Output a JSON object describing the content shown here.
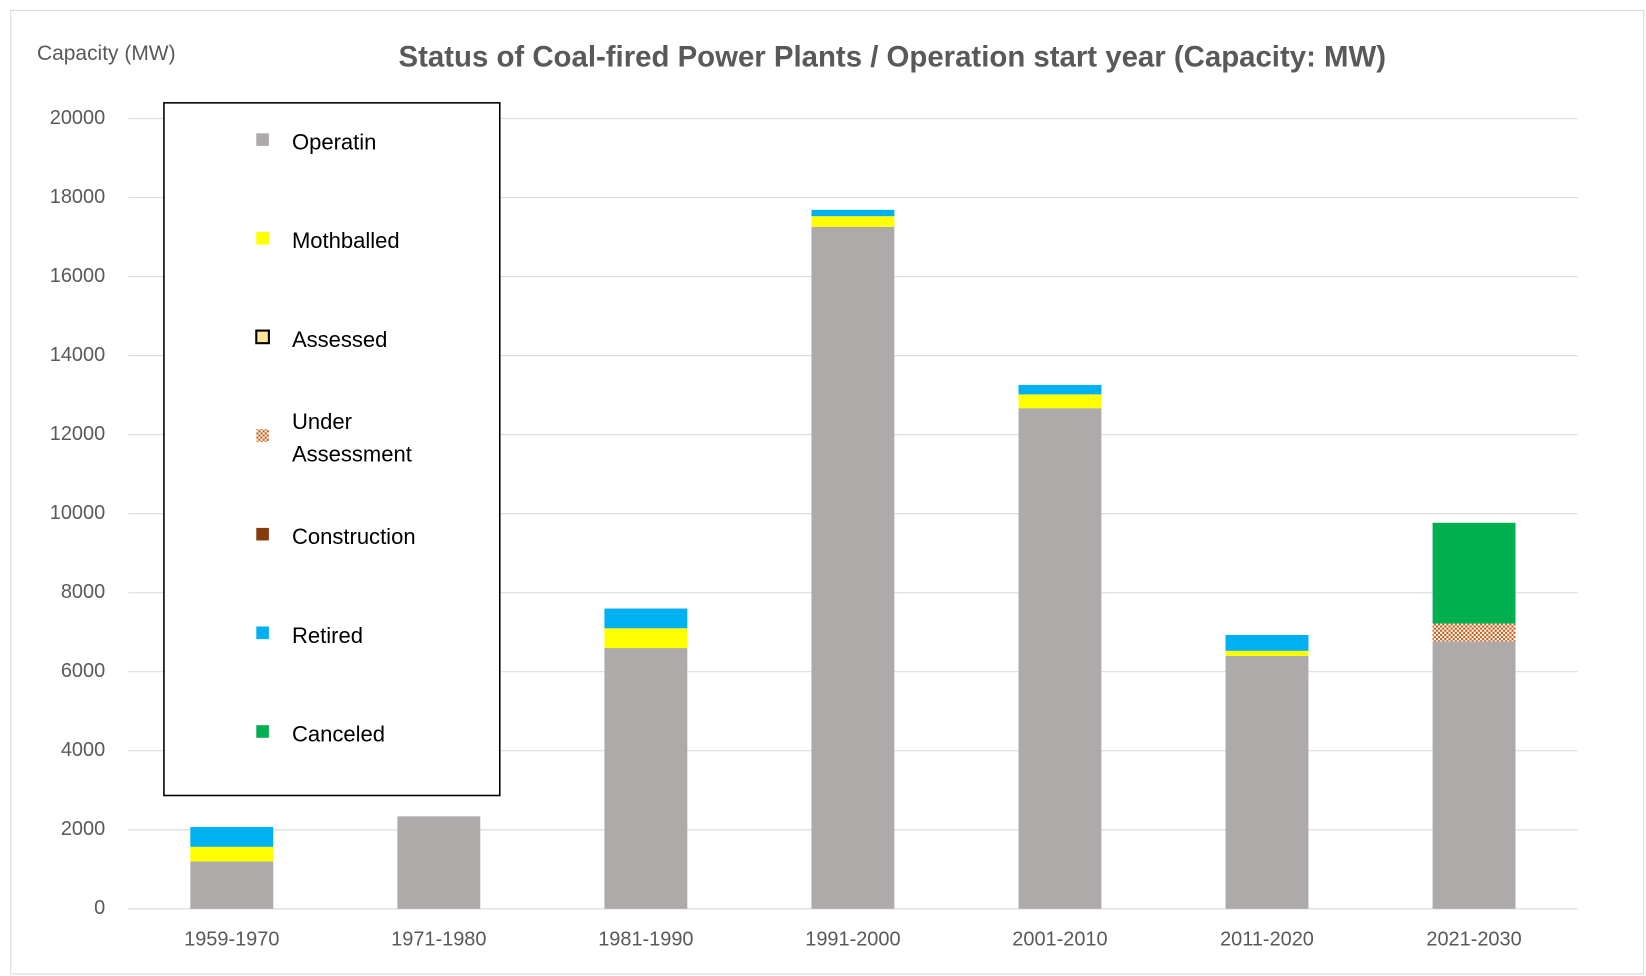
{
  "chart_data": {
    "type": "stacked_bar",
    "title": "Status of Coal-fired Power Plants / Operation start year (Capacity: MW)",
    "y_label": "Capacity (MW)",
    "categories": [
      "1959-1970",
      "1971-1980",
      "1981-1990",
      "1991-2000",
      "2001-2010",
      "2011-2020",
      "2021-2030"
    ],
    "series": [
      {
        "name": "Operatin",
        "color": "#aeaaaa",
        "values": [
          1200,
          2340,
          6600,
          17260,
          12670,
          6400,
          6770
        ]
      },
      {
        "name": "Mothballed",
        "color": "#ffff00",
        "values": [
          370,
          0,
          500,
          270,
          350,
          130,
          0
        ]
      },
      {
        "name": "Assessed",
        "color": "#ffe699",
        "values": [
          0,
          0,
          0,
          0,
          0,
          0,
          0
        ]
      },
      {
        "name": "Under Assessment",
        "color": "#c55a11",
        "values": [
          0,
          0,
          0,
          0,
          0,
          0,
          450
        ]
      },
      {
        "name": "Construction",
        "color": "#843c0c",
        "values": [
          0,
          0,
          0,
          0,
          0,
          0,
          0
        ]
      },
      {
        "name": "Retired",
        "color": "#00b0f0",
        "values": [
          500,
          0,
          500,
          160,
          240,
          400,
          0
        ]
      },
      {
        "name": "Canceled",
        "color": "#00b050",
        "values": [
          0,
          0,
          0,
          0,
          0,
          0,
          2550
        ]
      }
    ],
    "ylim": [
      0,
      20000
    ],
    "yticks": [
      0,
      2000,
      4000,
      6000,
      8000,
      10000,
      12000,
      14000,
      16000,
      18000,
      20000
    ],
    "grid": true,
    "legend": "upper left"
  }
}
